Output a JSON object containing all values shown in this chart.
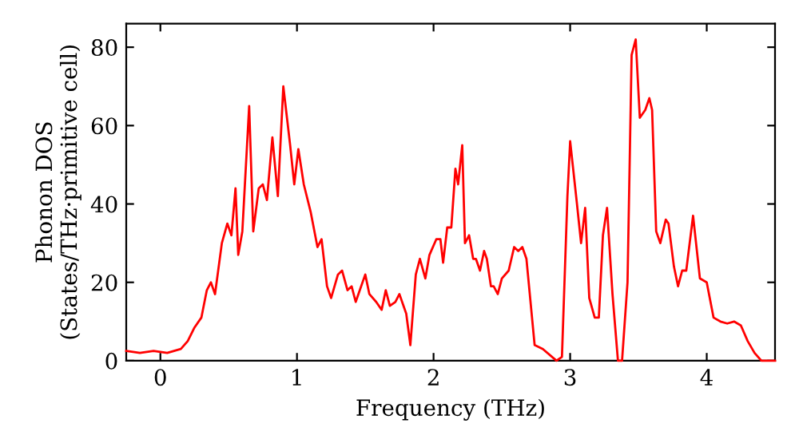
{
  "chart_data": {
    "type": "line",
    "xlabel": "Frequency (THz)",
    "ylabel": "Phonon DOS\n(States/THz·primitive cell)",
    "xlim": [
      -0.25,
      4.5
    ],
    "ylim": [
      0,
      86
    ],
    "xticks": [
      0,
      1,
      2,
      3,
      4
    ],
    "yticks": [
      0,
      20,
      40,
      60,
      80
    ],
    "grid": false,
    "legend": false,
    "marker": "none",
    "line_style": "solid",
    "series": [
      {
        "color": "#ff0000",
        "x": [
          -0.25,
          -0.15,
          -0.05,
          0.05,
          0.15,
          0.2,
          0.25,
          0.3,
          0.34,
          0.37,
          0.4,
          0.45,
          0.49,
          0.52,
          0.55,
          0.57,
          0.6,
          0.65,
          0.68,
          0.72,
          0.75,
          0.78,
          0.82,
          0.86,
          0.9,
          0.95,
          0.98,
          1.01,
          1.05,
          1.1,
          1.15,
          1.18,
          1.22,
          1.25,
          1.3,
          1.33,
          1.37,
          1.4,
          1.43,
          1.46,
          1.5,
          1.53,
          1.58,
          1.62,
          1.65,
          1.68,
          1.72,
          1.75,
          1.8,
          1.83,
          1.87,
          1.9,
          1.94,
          1.97,
          2.02,
          2.05,
          2.07,
          2.1,
          2.13,
          2.16,
          2.18,
          2.21,
          2.23,
          2.26,
          2.29,
          2.31,
          2.34,
          2.37,
          2.39,
          2.42,
          2.44,
          2.47,
          2.5,
          2.55,
          2.59,
          2.62,
          2.65,
          2.68,
          2.74,
          2.8,
          2.9,
          2.94,
          2.98,
          3.0,
          3.05,
          3.08,
          3.11,
          3.14,
          3.18,
          3.21,
          3.24,
          3.27,
          3.31,
          3.35,
          3.38,
          3.42,
          3.45,
          3.48,
          3.51,
          3.55,
          3.58,
          3.6,
          3.63,
          3.66,
          3.7,
          3.72,
          3.76,
          3.79,
          3.82,
          3.85,
          3.9,
          3.95,
          4.0,
          4.05,
          4.1,
          4.15,
          4.2,
          4.25,
          4.3,
          4.35,
          4.4,
          4.5
        ],
        "values": [
          2.5,
          2,
          2.5,
          2,
          3,
          5,
          8.5,
          11,
          18,
          20,
          17,
          30,
          35,
          32,
          44,
          27,
          33,
          65,
          33,
          44,
          45,
          41,
          57,
          42,
          70,
          55,
          45,
          54,
          45,
          38,
          29,
          31,
          19,
          16,
          22,
          23,
          18,
          19,
          15,
          18,
          22,
          17,
          15,
          13,
          18,
          14,
          15,
          17,
          12,
          4,
          22,
          26,
          21,
          27,
          31,
          31,
          25,
          34,
          34,
          49,
          45,
          55,
          30,
          32,
          26,
          26,
          23,
          28,
          26,
          19,
          19,
          17,
          21,
          23,
          29,
          28,
          29,
          26,
          4,
          3,
          0,
          1,
          42,
          56,
          40,
          30,
          39,
          16,
          11,
          11,
          32,
          39,
          17,
          0,
          0,
          20,
          78,
          82,
          62,
          64,
          67,
          64,
          33,
          30,
          36,
          35,
          24,
          19,
          23,
          23,
          37,
          21,
          20,
          11,
          10,
          9.5,
          10,
          9,
          5,
          2,
          0,
          0
        ]
      }
    ]
  }
}
